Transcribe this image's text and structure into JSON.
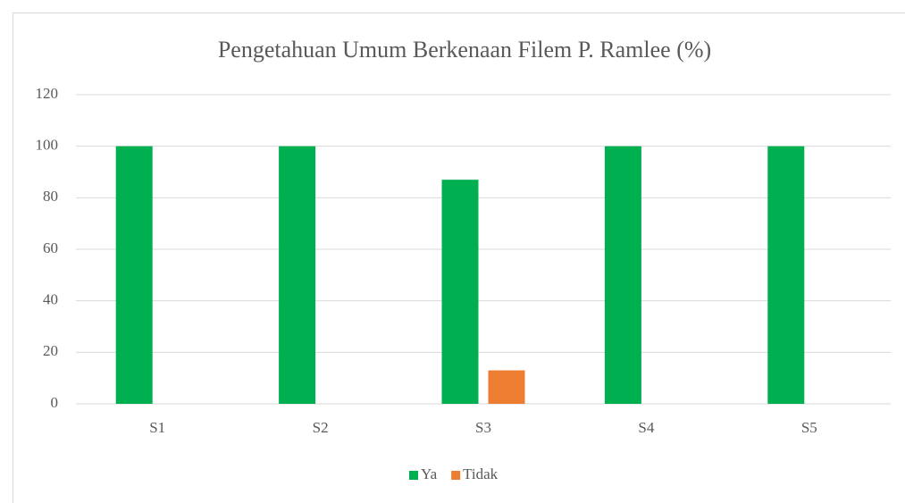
{
  "chart_data": {
    "type": "bar",
    "title": "Pengetahuan Umum Berkenaan Filem P. Ramlee (%)",
    "categories": [
      "S1",
      "S2",
      "S3",
      "S4",
      "S5"
    ],
    "series": [
      {
        "name": "Ya",
        "color": "#00b050",
        "values": [
          100,
          100,
          87,
          100,
          100
        ]
      },
      {
        "name": "Tidak",
        "color": "#ed7d31",
        "values": [
          0,
          0,
          13,
          0,
          0
        ]
      }
    ],
    "ylim": [
      0,
      120
    ],
    "yticks": [
      0,
      20,
      40,
      60,
      80,
      100,
      120
    ],
    "grid": true,
    "legend": "bottom"
  }
}
